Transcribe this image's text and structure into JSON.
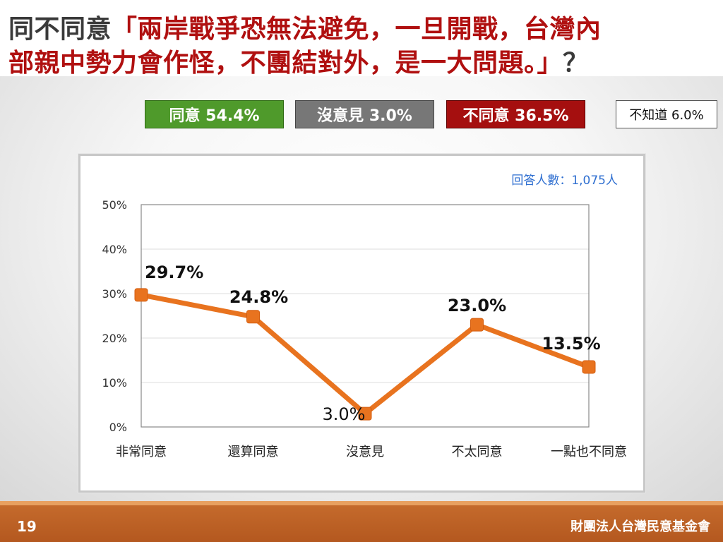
{
  "title": {
    "prefix": "同不同意",
    "quote_line1": "「兩岸戰爭恐無法避免，一旦開戰，台灣內",
    "quote_line2": "部親中勢力會作怪，不團結對外，是一大問題。」",
    "suffix": "？"
  },
  "summary": {
    "agree": "同意 54.4%",
    "neutral": "沒意見 3.0%",
    "disagree": "不同意 36.5%",
    "unknown": "不知道 6.0%"
  },
  "colors": {
    "agree": "#4f9a2b",
    "neutral": "#777777",
    "disagree": "#a50f0f",
    "line": "#e8731f",
    "title_red": "#b01010",
    "sample_text": "#2f6fd0"
  },
  "sample_size": "回答人數：1,075人",
  "chart_data": {
    "type": "line",
    "categories": [
      "非常同意",
      "還算同意",
      "沒意見",
      "不太同意",
      "一點也不同意"
    ],
    "values": [
      29.7,
      24.8,
      3.0,
      23.0,
      13.5
    ],
    "value_labels": [
      "29.7%",
      "24.8%",
      "3.0%",
      "23.0%",
      "13.5%"
    ],
    "y_ticks": [
      "0%",
      "10%",
      "20%",
      "30%",
      "40%",
      "50%"
    ],
    "ylim": [
      0,
      50
    ],
    "grid": true,
    "xlabel": "",
    "ylabel": ""
  },
  "footer": {
    "page": "19",
    "org": "財團法人台灣民意基金會"
  }
}
